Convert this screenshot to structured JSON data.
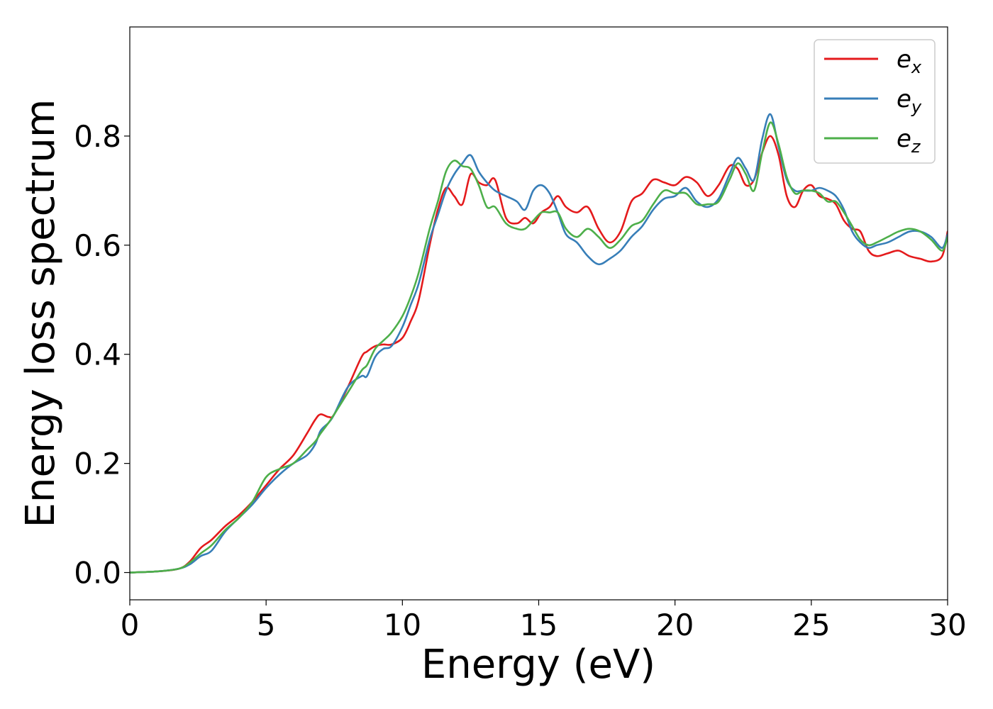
{
  "chart_data": {
    "type": "line",
    "title": "",
    "xlabel": "Energy (eV)",
    "ylabel": "Energy loss spectrum",
    "xlim": [
      0,
      30
    ],
    "ylim": [
      -0.05,
      1.0
    ],
    "xticks": [
      0,
      5,
      10,
      15,
      20,
      25,
      30
    ],
    "xtick_labels": [
      "0",
      "5",
      "10",
      "15",
      "20",
      "25",
      "30"
    ],
    "yticks": [
      0.0,
      0.2,
      0.4,
      0.6,
      0.8
    ],
    "ytick_labels": [
      "0.0",
      "0.2",
      "0.4",
      "0.6",
      "0.8"
    ],
    "grid": false,
    "legend_position": "top-right",
    "series": [
      {
        "name": "e_x",
        "base": "e",
        "sub": "x",
        "color": "#e41a1c",
        "x": [
          0,
          1,
          1.8,
          2.2,
          2.6,
          3,
          3.5,
          4,
          4.5,
          5,
          5.5,
          6,
          6.5,
          6.8,
          7,
          7.3,
          7.5,
          8,
          8.5,
          8.7,
          9,
          9.3,
          9.6,
          10,
          10.3,
          10.6,
          11,
          11.3,
          11.6,
          11.9,
          12.2,
          12.5,
          12.8,
          13.1,
          13.4,
          13.8,
          14.2,
          14.5,
          14.8,
          15.1,
          15.4,
          15.7,
          16,
          16.4,
          16.8,
          17.2,
          17.6,
          18,
          18.4,
          18.8,
          19.2,
          19.6,
          20,
          20.4,
          20.8,
          21.2,
          21.6,
          22,
          22.3,
          22.6,
          22.9,
          23.2,
          23.5,
          23.8,
          24.1,
          24.4,
          24.7,
          25,
          25.3,
          25.6,
          25.9,
          26.2,
          26.5,
          26.8,
          27.1,
          27.4,
          27.8,
          28.2,
          28.6,
          29,
          29.4,
          29.8,
          30
        ],
        "y": [
          0.0,
          0.002,
          0.007,
          0.02,
          0.045,
          0.06,
          0.085,
          0.105,
          0.13,
          0.16,
          0.19,
          0.215,
          0.255,
          0.28,
          0.29,
          0.285,
          0.29,
          0.34,
          0.395,
          0.405,
          0.415,
          0.418,
          0.418,
          0.43,
          0.46,
          0.5,
          0.6,
          0.665,
          0.705,
          0.69,
          0.675,
          0.73,
          0.715,
          0.71,
          0.72,
          0.65,
          0.64,
          0.65,
          0.64,
          0.66,
          0.67,
          0.69,
          0.67,
          0.66,
          0.67,
          0.63,
          0.605,
          0.625,
          0.68,
          0.695,
          0.72,
          0.715,
          0.71,
          0.725,
          0.715,
          0.69,
          0.71,
          0.745,
          0.74,
          0.71,
          0.72,
          0.77,
          0.8,
          0.765,
          0.69,
          0.67,
          0.7,
          0.71,
          0.69,
          0.685,
          0.675,
          0.645,
          0.63,
          0.625,
          0.59,
          0.58,
          0.585,
          0.59,
          0.58,
          0.575,
          0.57,
          0.58,
          0.625
        ]
      },
      {
        "name": "e_y",
        "base": "e",
        "sub": "y",
        "color": "#377eb8",
        "x": [
          0,
          1,
          1.8,
          2.2,
          2.6,
          3,
          3.5,
          4,
          4.5,
          5,
          5.5,
          6,
          6.5,
          6.8,
          7,
          7.3,
          7.5,
          8,
          8.5,
          8.7,
          9,
          9.3,
          9.6,
          10,
          10.3,
          10.6,
          11,
          11.3,
          11.6,
          11.9,
          12.2,
          12.5,
          12.8,
          13.1,
          13.4,
          13.8,
          14.2,
          14.5,
          14.8,
          15.1,
          15.4,
          15.7,
          16,
          16.4,
          16.8,
          17.2,
          17.6,
          18,
          18.4,
          18.8,
          19.2,
          19.6,
          20,
          20.4,
          20.8,
          21.2,
          21.6,
          22,
          22.3,
          22.6,
          22.9,
          23.2,
          23.5,
          23.8,
          24.1,
          24.4,
          24.7,
          25,
          25.3,
          25.6,
          25.9,
          26.2,
          26.5,
          26.8,
          27.1,
          27.4,
          27.8,
          28.2,
          28.6,
          29,
          29.4,
          29.8,
          30
        ],
        "y": [
          0.0,
          0.002,
          0.007,
          0.015,
          0.03,
          0.04,
          0.075,
          0.1,
          0.125,
          0.155,
          0.18,
          0.2,
          0.215,
          0.235,
          0.26,
          0.275,
          0.29,
          0.34,
          0.36,
          0.36,
          0.395,
          0.41,
          0.415,
          0.45,
          0.49,
          0.53,
          0.61,
          0.655,
          0.7,
          0.73,
          0.75,
          0.765,
          0.735,
          0.715,
          0.7,
          0.69,
          0.68,
          0.665,
          0.7,
          0.71,
          0.695,
          0.66,
          0.62,
          0.605,
          0.58,
          0.565,
          0.575,
          0.59,
          0.615,
          0.635,
          0.665,
          0.685,
          0.69,
          0.705,
          0.68,
          0.67,
          0.685,
          0.73,
          0.76,
          0.74,
          0.72,
          0.795,
          0.84,
          0.78,
          0.72,
          0.7,
          0.7,
          0.7,
          0.705,
          0.7,
          0.69,
          0.665,
          0.625,
          0.605,
          0.595,
          0.6,
          0.605,
          0.615,
          0.625,
          0.625,
          0.615,
          0.595,
          0.62
        ]
      },
      {
        "name": "e_z",
        "base": "e",
        "sub": "z",
        "color": "#4daf4a",
        "x": [
          0,
          1,
          1.8,
          2.2,
          2.6,
          3,
          3.5,
          4,
          4.5,
          5,
          5.5,
          6,
          6.5,
          6.8,
          7,
          7.3,
          7.5,
          8,
          8.5,
          8.7,
          9,
          9.3,
          9.6,
          10,
          10.3,
          10.6,
          11,
          11.3,
          11.6,
          11.9,
          12.2,
          12.5,
          12.8,
          13.1,
          13.4,
          13.8,
          14.2,
          14.5,
          14.8,
          15.1,
          15.4,
          15.7,
          16,
          16.4,
          16.8,
          17.2,
          17.6,
          18,
          18.4,
          18.8,
          19.2,
          19.6,
          20,
          20.4,
          20.8,
          21.2,
          21.6,
          22,
          22.3,
          22.6,
          22.9,
          23.2,
          23.5,
          23.8,
          24.1,
          24.4,
          24.7,
          25,
          25.3,
          25.6,
          25.9,
          26.2,
          26.5,
          26.8,
          27.1,
          27.4,
          27.8,
          28.2,
          28.6,
          29,
          29.4,
          29.8,
          30
        ],
        "y": [
          0.0,
          0.002,
          0.007,
          0.018,
          0.035,
          0.05,
          0.078,
          0.1,
          0.13,
          0.175,
          0.19,
          0.2,
          0.225,
          0.24,
          0.255,
          0.275,
          0.29,
          0.33,
          0.37,
          0.38,
          0.41,
          0.425,
          0.44,
          0.47,
          0.505,
          0.55,
          0.63,
          0.68,
          0.735,
          0.755,
          0.745,
          0.74,
          0.71,
          0.67,
          0.67,
          0.64,
          0.63,
          0.63,
          0.645,
          0.66,
          0.66,
          0.66,
          0.63,
          0.615,
          0.63,
          0.615,
          0.595,
          0.61,
          0.635,
          0.645,
          0.675,
          0.7,
          0.695,
          0.695,
          0.675,
          0.675,
          0.68,
          0.72,
          0.75,
          0.73,
          0.7,
          0.77,
          0.825,
          0.785,
          0.725,
          0.695,
          0.7,
          0.7,
          0.695,
          0.68,
          0.68,
          0.66,
          0.635,
          0.61,
          0.6,
          0.605,
          0.615,
          0.625,
          0.63,
          0.625,
          0.61,
          0.59,
          0.615
        ]
      }
    ]
  }
}
